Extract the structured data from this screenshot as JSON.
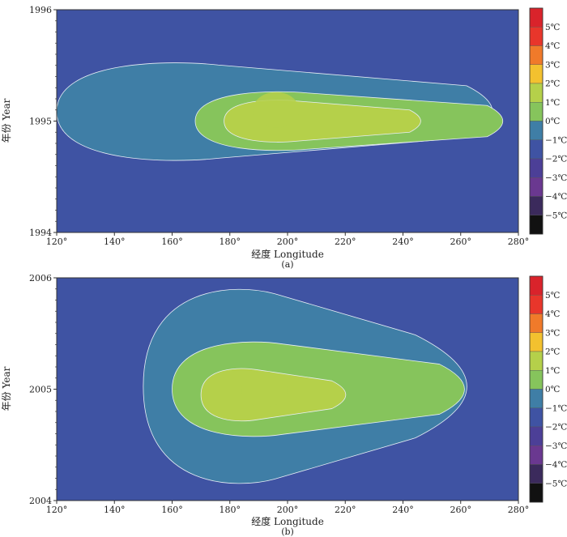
{
  "chart_data": [
    {
      "type": "heatmap",
      "panel_label": "(a)",
      "xlabel": "经度 Longitude",
      "ylabel": "年份 Year",
      "x_ticks": [
        "120°",
        "140°",
        "160°",
        "180°",
        "200°",
        "220°",
        "240°",
        "260°",
        "280°"
      ],
      "y_ticks": [
        "1994",
        "1995",
        "1996"
      ],
      "xlim": [
        120,
        280
      ],
      "ylim": [
        1994,
        1996
      ],
      "colorbar_labels": [
        "5℃",
        "4℃",
        "3℃",
        "2℃",
        "1℃",
        "0℃",
        "−1℃",
        "−2℃",
        "−3℃",
        "−4℃",
        "−5℃"
      ],
      "warm_core": {
        "center": [
          196,
          1995.1
        ],
        "peak": 2.5
      },
      "bands": [
        {
          "level": -1,
          "x1": 120,
          "x2": 280,
          "y1": 1994.0,
          "y2": 1996.0
        },
        {
          "level": 0,
          "x1": 120,
          "x2": 280,
          "y1": 1994.62,
          "y2": 1995.55
        },
        {
          "level": 1,
          "x1": 168,
          "x2": 280,
          "y1": 1994.72,
          "y2": 1995.28
        },
        {
          "level": 2,
          "x1": 178,
          "x2": 250,
          "y1": 1994.8,
          "y2": 1995.2
        }
      ]
    },
    {
      "type": "heatmap",
      "panel_label": "(b)",
      "xlabel": "经度 Longitude",
      "ylabel": "年份 Year",
      "x_ticks": [
        "120°",
        "140°",
        "160°",
        "180°",
        "200°",
        "220°",
        "240°",
        "260°",
        "280°"
      ],
      "y_ticks": [
        "2004",
        "2005",
        "2006"
      ],
      "xlim": [
        120,
        280
      ],
      "ylim": [
        2004,
        2006
      ],
      "colorbar_labels": [
        "5℃",
        "4℃",
        "3℃",
        "2℃",
        "1℃",
        "0℃",
        "−1℃",
        "−2℃",
        "−3℃",
        "−4℃",
        "−5℃"
      ],
      "warm_core": {
        "center": [
          192,
          2005.0
        ],
        "peak": 2.0
      },
      "bands": [
        {
          "level": -1,
          "x1": 120,
          "x2": 280,
          "y1": 2004.0,
          "y2": 2006.0
        },
        {
          "level": 0,
          "x1": 150,
          "x2": 280,
          "y1": 2004.1,
          "y2": 2005.95
        },
        {
          "level": 1,
          "x1": 160,
          "x2": 270,
          "y1": 2004.55,
          "y2": 2005.45
        },
        {
          "level": 2,
          "x1": 170,
          "x2": 225,
          "y1": 2004.7,
          "y2": 2005.2
        }
      ]
    }
  ],
  "palette": {
    "5": "#e8362b",
    "4": "#f07a2a",
    "3": "#f3c12f",
    "2": "#b5d04a",
    "1": "#86c45c",
    "0": "#3f7ea6",
    "-1": "#3f53a3",
    "-2": "#4c3f97",
    "-3": "#6a3890",
    "-4": "#3b2a5c",
    "-5": "#111111",
    "6": "#d9232b",
    "plot_bg": "#3f53a3"
  }
}
